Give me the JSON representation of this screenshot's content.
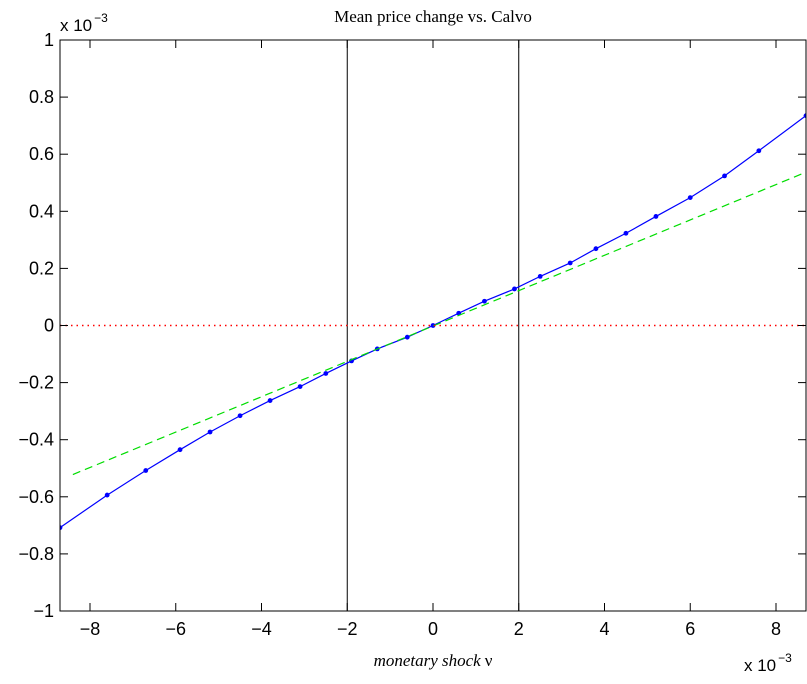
{
  "chart_data": {
    "type": "line",
    "title": "Mean price change vs. Calvo",
    "xlabel": "monetary shock ν",
    "xlabel_italic_part": "monetary shock",
    "xlabel_symbol": "ν",
    "ylabel": "",
    "x_multiplier": "x 10",
    "x_multiplier_exp": "−3",
    "y_multiplier": "x 10",
    "y_multiplier_exp": "−3",
    "xlim": [
      -8.7,
      8.7
    ],
    "ylim": [
      -1,
      1
    ],
    "xticks": [
      -8,
      -6,
      -4,
      -2,
      0,
      2,
      4,
      6,
      8
    ],
    "xtick_labels": [
      "−8",
      "−6",
      "−4",
      "−2",
      "0",
      "2",
      "4",
      "6",
      "8"
    ],
    "yticks": [
      -1,
      -0.8,
      -0.6,
      -0.4,
      -0.2,
      0,
      0.2,
      0.4,
      0.6,
      0.8,
      1
    ],
    "ytick_labels": [
      "−1",
      "−0.8",
      "−0.6",
      "−0.4",
      "−0.2",
      "0",
      "0.2",
      "0.4",
      "0.6",
      "0.8",
      "1"
    ],
    "grid": false,
    "series": [
      {
        "style": "solid-with-markers",
        "color": "#0000ff",
        "x": [
          -8.7,
          -7.6,
          -6.7,
          -5.9,
          -5.2,
          -4.5,
          -3.8,
          -3.1,
          -2.5,
          -1.9,
          -1.3,
          -0.6,
          0.0,
          0.6,
          1.2,
          1.9,
          2.5,
          3.2,
          3.8,
          4.5,
          5.2,
          6.0,
          6.8,
          7.6,
          8.7
        ],
        "y": [
          -0.708,
          -0.594,
          -0.508,
          -0.435,
          -0.373,
          -0.316,
          -0.263,
          -0.214,
          -0.168,
          -0.124,
          -0.082,
          -0.041,
          0.0,
          0.043,
          0.085,
          0.128,
          0.172,
          0.219,
          0.269,
          0.323,
          0.382,
          0.448,
          0.524,
          0.612,
          0.735
        ]
      },
      {
        "style": "dashed",
        "color": "#00dd00",
        "x": [
          -8.4,
          8.7
        ],
        "y": [
          -0.522,
          0.537
        ]
      },
      {
        "style": "dotted",
        "color": "#ff0000",
        "x": [
          -8.7,
          8.7
        ],
        "y": [
          0,
          0
        ]
      }
    ],
    "vertical_lines": [
      {
        "x": -2,
        "color": "#000000"
      },
      {
        "x": 2,
        "color": "#000000"
      }
    ]
  }
}
